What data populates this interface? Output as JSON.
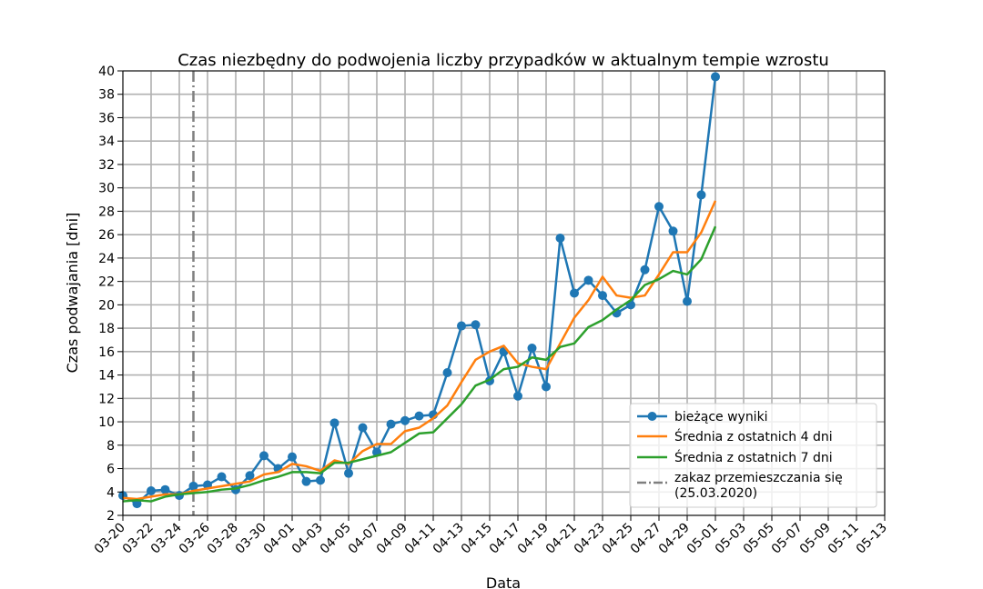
{
  "chart_data": {
    "type": "line",
    "title": "Czas niezbędny do podwojenia liczby przypadków w aktualnym tempie wzrostu",
    "xlabel": "Data",
    "ylabel": "Czas podwajania [dni]",
    "ylim": [
      2,
      40
    ],
    "yticks": [
      2,
      4,
      6,
      8,
      10,
      12,
      14,
      16,
      18,
      20,
      22,
      24,
      26,
      28,
      30,
      32,
      34,
      36,
      38,
      40
    ],
    "xlim": [
      "03-20",
      "05-13"
    ],
    "xticks": [
      "03-20",
      "03-22",
      "03-24",
      "03-26",
      "03-28",
      "03-30",
      "04-01",
      "04-03",
      "04-05",
      "04-07",
      "04-09",
      "04-11",
      "04-13",
      "04-15",
      "04-17",
      "04-19",
      "04-21",
      "04-23",
      "04-25",
      "04-27",
      "04-29",
      "05-01",
      "05-03",
      "05-05",
      "05-07",
      "05-09",
      "05-11",
      "05-13"
    ],
    "grid": true,
    "legend_position": "lower-right",
    "x": [
      "03-20",
      "03-21",
      "03-22",
      "03-23",
      "03-24",
      "03-25",
      "03-26",
      "03-27",
      "03-28",
      "03-29",
      "03-30",
      "03-31",
      "04-01",
      "04-02",
      "04-03",
      "04-04",
      "04-05",
      "04-06",
      "04-07",
      "04-08",
      "04-09",
      "04-10",
      "04-11",
      "04-12",
      "04-13",
      "04-14",
      "04-15",
      "04-16",
      "04-17",
      "04-18",
      "04-19",
      "04-20",
      "04-21",
      "04-22",
      "04-23",
      "04-24",
      "04-25",
      "04-26",
      "04-27",
      "04-28",
      "04-29",
      "04-30",
      "05-01"
    ],
    "series": [
      {
        "name": "bieżące wyniki",
        "color": "#1f77b4",
        "marker": "circle",
        "values": [
          3.7,
          3.0,
          4.1,
          4.2,
          3.7,
          4.5,
          4.6,
          5.3,
          4.2,
          5.4,
          7.1,
          6.0,
          7.0,
          4.9,
          5.0,
          9.9,
          5.6,
          9.5,
          7.4,
          9.8,
          10.1,
          10.5,
          10.6,
          14.2,
          18.2,
          18.3,
          13.5,
          16.0,
          12.2,
          16.3,
          13.0,
          25.7,
          21.0,
          22.1,
          20.8,
          19.3,
          20.0,
          23.0,
          28.4,
          26.3,
          20.3,
          29.4,
          39.5
        ]
      },
      {
        "name": "Średnia z ostatnich 4 dni",
        "color": "#ff7f0e",
        "marker": "none",
        "values": [
          3.5,
          3.4,
          3.6,
          3.8,
          3.8,
          4.1,
          4.3,
          4.5,
          4.7,
          4.9,
          5.5,
          5.7,
          6.4,
          6.2,
          5.8,
          6.7,
          6.4,
          7.5,
          8.1,
          8.1,
          9.2,
          9.5,
          10.3,
          11.4,
          13.4,
          15.3,
          16.0,
          16.5,
          15.0,
          14.7,
          14.5,
          16.7,
          18.9,
          20.4,
          22.4,
          20.8,
          20.6,
          20.8,
          22.6,
          24.5,
          24.5,
          26.2,
          28.9
        ]
      },
      {
        "name": "Średnia z ostatnich 7 dni",
        "color": "#2ca02c",
        "marker": "none",
        "values": [
          3.2,
          3.3,
          3.2,
          3.6,
          3.8,
          3.9,
          4.0,
          4.2,
          4.3,
          4.6,
          5.0,
          5.3,
          5.7,
          5.7,
          5.6,
          6.5,
          6.5,
          6.8,
          7.1,
          7.4,
          8.2,
          9.0,
          9.1,
          10.3,
          11.5,
          13.1,
          13.6,
          14.5,
          14.7,
          15.5,
          15.3,
          16.4,
          16.7,
          18.1,
          18.7,
          19.6,
          20.4,
          21.7,
          22.2,
          22.9,
          22.6,
          23.9,
          26.7
        ]
      }
    ],
    "vline": {
      "label": "zakaz przemieszczania się\n(25.03.2020)",
      "x": "03-25",
      "color": "#7f7f7f",
      "style": "dash-dot"
    }
  }
}
